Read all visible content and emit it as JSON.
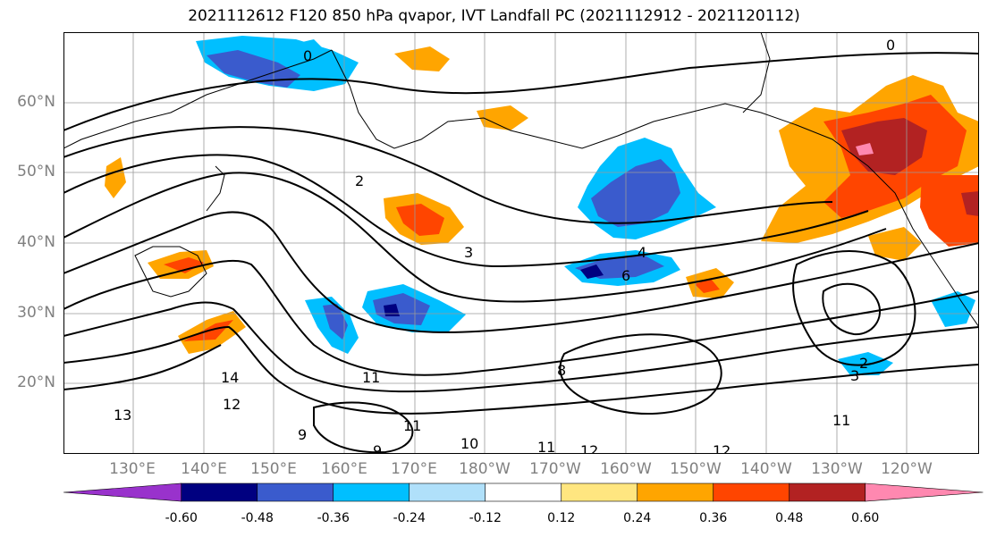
{
  "title": "2021112612 F120 850 hPa qvapor, IVT Landfall PC (2021112912 - 2021120112)",
  "lat_labels": [
    "60°N",
    "50°N",
    "40°N",
    "30°N",
    "20°N"
  ],
  "lon_labels": [
    "130°E",
    "140°E",
    "150°E",
    "160°E",
    "170°E",
    "180°W",
    "170°W",
    "160°W",
    "150°W",
    "140°W",
    "130°W",
    "120°W"
  ],
  "colorbar": {
    "ticks": [
      "-0.60",
      "-0.48",
      "-0.36",
      "-0.24",
      "-0.12",
      "0.12",
      "0.24",
      "0.36",
      "0.48",
      "0.60"
    ],
    "colors": [
      "#9932cc",
      "#000080",
      "#3a5bcd",
      "#00bfff",
      "#b0e0fa",
      "#ffffff",
      "#ffe680",
      "#ffa500",
      "#ff4500",
      "#b22222",
      "#ff88b0"
    ]
  },
  "contour_labels": [
    "0",
    "0",
    "2",
    "3",
    "4",
    "6",
    "8",
    "9",
    "9",
    "10",
    "11",
    "11",
    "11",
    "11",
    "12",
    "12",
    "12",
    "13",
    "14",
    "2",
    "3"
  ]
}
